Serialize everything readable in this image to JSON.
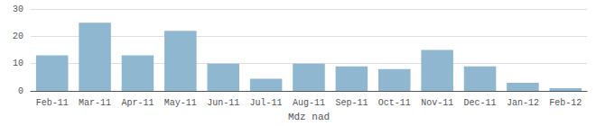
{
  "chart_data": {
    "type": "bar",
    "categories": [
      "Feb-11",
      "Mar-11",
      "Apr-11",
      "May-11",
      "Jun-11",
      "Jul-11",
      "Aug-11",
      "Sep-11",
      "Oct-11",
      "Nov-11",
      "Dec-11",
      "Jan-12",
      "Feb-12"
    ],
    "values": [
      13,
      25,
      13,
      22,
      10,
      4.5,
      10,
      9,
      8,
      15,
      9,
      3,
      1
    ],
    "color": "#8fb8d0",
    "xlabel": "Mdz nad",
    "ylim": [
      0,
      30
    ],
    "yticks": [
      0,
      10,
      20,
      30
    ],
    "grid": true
  }
}
